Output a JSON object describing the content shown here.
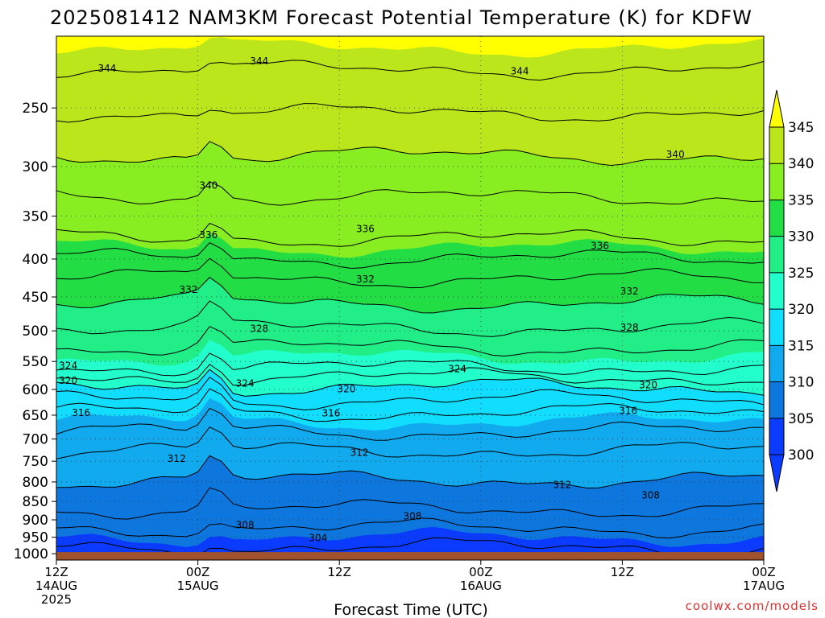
{
  "title": "2025081412 NAM3KM Forecast Potential Temperature (K) for KDFW",
  "credit": "coolwx.com/models",
  "colors": {
    "band_345": "#ffff00",
    "band_340": "#bbe61c",
    "band_335": "#88ee22",
    "band_330": "#22dd44",
    "band_325": "#22ee88",
    "band_320": "#22ffcc",
    "band_315": "#11ddff",
    "band_310": "#11aaee",
    "band_305": "#0e77dd",
    "band_300": "#0a3bff",
    "ground": "#a0522d"
  },
  "chart_data": {
    "type": "heatmap",
    "title": "2025081412 NAM3KM Forecast Potential Temperature (K) for KDFW",
    "xlabel": "Forecast Time (UTC)",
    "ylabel": "",
    "x_ticks": [
      {
        "hour": 0,
        "line1": "12Z",
        "line2": "14AUG",
        "line3": "2025"
      },
      {
        "hour": 12,
        "line1": "00Z",
        "line2": "15AUG",
        "line3": ""
      },
      {
        "hour": 24,
        "line1": "12Z",
        "line2": "",
        "line3": ""
      },
      {
        "hour": 36,
        "line1": "00Z",
        "line2": "16AUG",
        "line3": ""
      },
      {
        "hour": 48,
        "line1": "12Z",
        "line2": "",
        "line3": ""
      },
      {
        "hour": 60,
        "line1": "00Z",
        "line2": "17AUG",
        "line3": ""
      }
    ],
    "xlim": [
      0,
      60
    ],
    "y_axis": "pressure (hPa), log scale, inverted",
    "y_ticks": [
      250,
      300,
      350,
      400,
      450,
      500,
      550,
      600,
      650,
      700,
      750,
      800,
      850,
      900,
      950,
      1000
    ],
    "ylim": [
      1020,
      200
    ],
    "grid": true,
    "colorbar": {
      "levels": [
        300,
        305,
        310,
        315,
        320,
        325,
        330,
        335,
        340,
        345
      ],
      "labels": [
        "300",
        "305",
        "310",
        "315",
        "320",
        "325",
        "330",
        "335",
        "340",
        "345"
      ],
      "units": "K"
    },
    "isentropes_K": [
      304,
      306,
      308,
      310,
      312,
      314,
      316,
      318,
      320,
      322,
      324,
      326,
      328,
      330,
      332,
      334,
      336,
      338,
      340,
      342,
      344
    ],
    "level_pressure_hPa": [
      {
        "theta": 304,
        "p": 980
      },
      {
        "theta": 308,
        "p": 870
      },
      {
        "theta": 312,
        "p": 725
      },
      {
        "theta": 316,
        "p": 645
      },
      {
        "theta": 320,
        "p": 595
      },
      {
        "theta": 324,
        "p": 560
      },
      {
        "theta": 328,
        "p": 495
      },
      {
        "theta": 332,
        "p": 425
      },
      {
        "theta": 336,
        "p": 375
      },
      {
        "theta": 340,
        "p": 290
      },
      {
        "theta": 344,
        "p": 222
      }
    ],
    "contour_labels": [
      {
        "text": "344",
        "hour": 4.3,
        "p": 221
      },
      {
        "text": "344",
        "hour": 17.2,
        "p": 216
      },
      {
        "text": "344",
        "hour": 39.3,
        "p": 223
      },
      {
        "text": "340",
        "hour": 12.9,
        "p": 318
      },
      {
        "text": "340",
        "hour": 52.5,
        "p": 289
      },
      {
        "text": "336",
        "hour": 12.9,
        "p": 371
      },
      {
        "text": "336",
        "hour": 26.2,
        "p": 364
      },
      {
        "text": "336",
        "hour": 46.1,
        "p": 384
      },
      {
        "text": "332",
        "hour": 11.2,
        "p": 440
      },
      {
        "text": "332",
        "hour": 26.2,
        "p": 426
      },
      {
        "text": "332",
        "hour": 48.6,
        "p": 442
      },
      {
        "text": "328",
        "hour": 17.2,
        "p": 497
      },
      {
        "text": "328",
        "hour": 48.6,
        "p": 495
      },
      {
        "text": "324",
        "hour": 1.0,
        "p": 557
      },
      {
        "text": "324",
        "hour": 16.0,
        "p": 589
      },
      {
        "text": "324",
        "hour": 34.0,
        "p": 563
      },
      {
        "text": "320",
        "hour": 1.0,
        "p": 584
      },
      {
        "text": "320",
        "hour": 24.6,
        "p": 599
      },
      {
        "text": "320",
        "hour": 50.2,
        "p": 592
      },
      {
        "text": "316",
        "hour": 2.1,
        "p": 645
      },
      {
        "text": "316",
        "hour": 23.3,
        "p": 646
      },
      {
        "text": "316",
        "hour": 48.5,
        "p": 641
      },
      {
        "text": "312",
        "hour": 10.2,
        "p": 744
      },
      {
        "text": "312",
        "hour": 25.7,
        "p": 730
      },
      {
        "text": "312",
        "hour": 42.9,
        "p": 807
      },
      {
        "text": "308",
        "hour": 16.0,
        "p": 915
      },
      {
        "text": "308",
        "hour": 30.2,
        "p": 890
      },
      {
        "text": "308",
        "hour": 50.4,
        "p": 834
      },
      {
        "text": "304",
        "hour": 22.2,
        "p": 952
      }
    ]
  }
}
